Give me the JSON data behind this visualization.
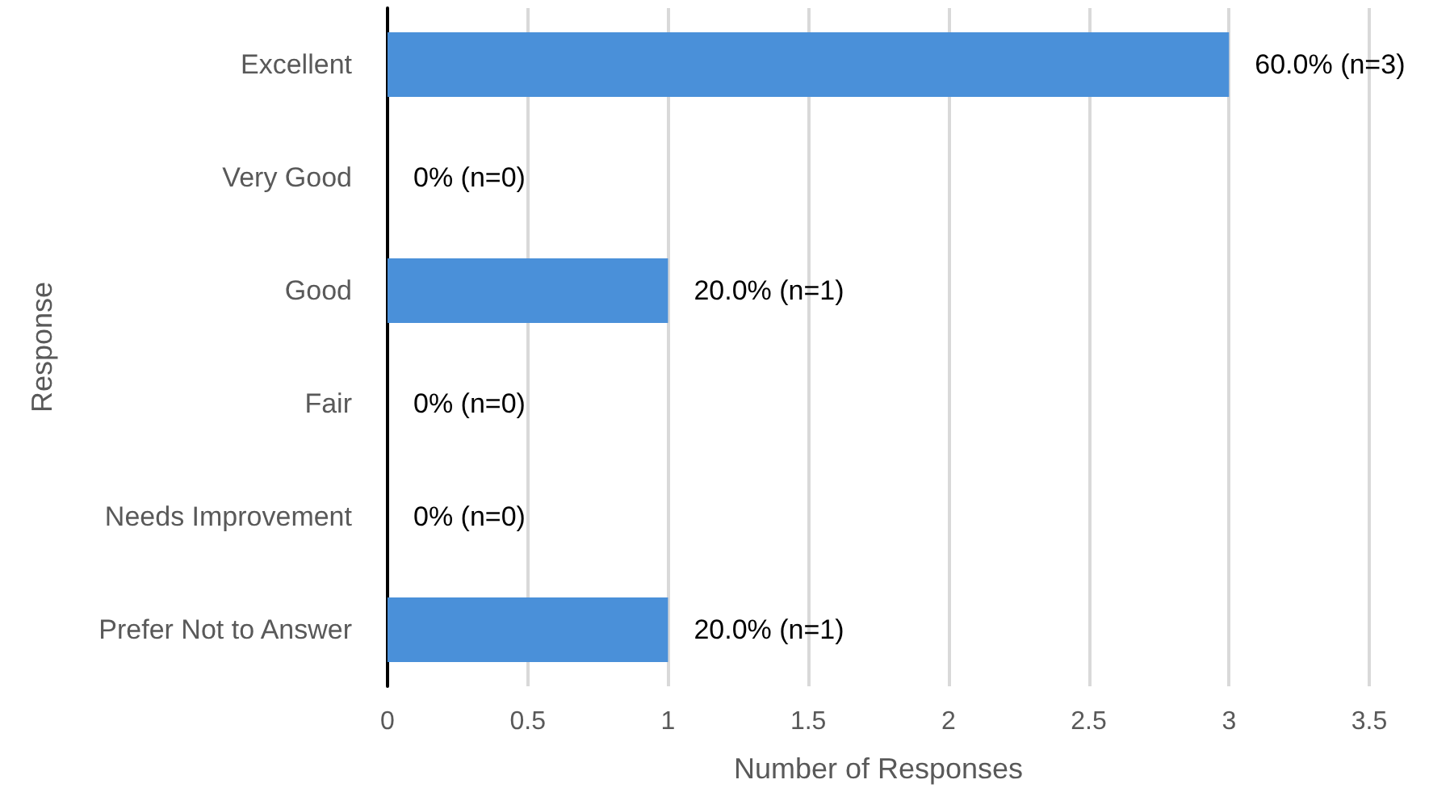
{
  "chart_data": {
    "type": "bar",
    "orientation": "horizontal",
    "xlabel": "Number of Responses",
    "ylabel": "Response",
    "categories": [
      "Excellent",
      "Very Good",
      "Good",
      "Fair",
      "Needs Improvement",
      "Prefer Not to Answer"
    ],
    "values": [
      3,
      0,
      1,
      0,
      0,
      1
    ],
    "value_labels": [
      "60.0% (n=3)",
      "0% (n=0)",
      "20.0% (n=1)",
      "0% (n=0)",
      "0% (n=0)",
      "20.0% (n=1)"
    ],
    "color": "#4a90d9",
    "xlim": [
      0,
      3.5
    ],
    "xticks": [
      0,
      0.5,
      1,
      1.5,
      2,
      2.5,
      3,
      3.5
    ],
    "grid": "x"
  }
}
